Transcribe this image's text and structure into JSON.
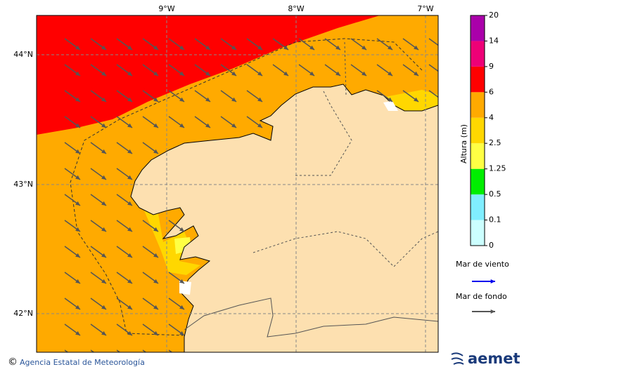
{
  "map": {
    "lon_labels": [
      "9°W",
      "8°W",
      "7°W"
    ],
    "lat_labels": [
      "44°N",
      "43°N",
      "42°N"
    ]
  },
  "colorbar": {
    "title": "Altura (m)",
    "ticks": [
      0,
      0.1,
      0.5,
      1.25,
      2.5,
      4,
      6,
      9,
      14,
      20
    ],
    "colors": [
      "#ccffff",
      "#80eeff",
      "#00ee00",
      "#ffff44",
      "#ffd700",
      "#ffaa00",
      "#ff0000",
      "#ee0077",
      "#aa00aa"
    ]
  },
  "arrows": {
    "wind": {
      "label": "Mar de viento",
      "color": "#0000ee"
    },
    "swell": {
      "label": "Mar de fondo",
      "color": "#555555"
    }
  },
  "footer": {
    "copyright": "©",
    "credit": "Agencia Estatal de Meteorología",
    "logo": "aemet"
  }
}
